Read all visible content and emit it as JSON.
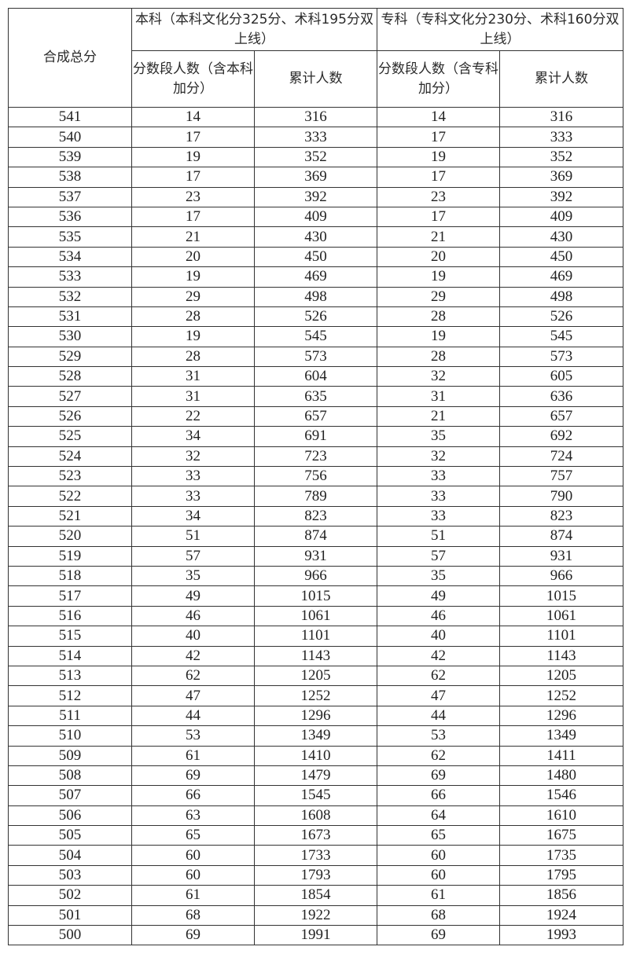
{
  "table": {
    "header": {
      "score_col": "合成总分",
      "benke_group": "本科（本科文化分325分、术科195分双上线）",
      "zhuanke_group": "专科（专科文化分230分、术科160分双上线）",
      "benke_count": "分数段人数（含本科加分）",
      "benke_cum": "累计人数",
      "zhuanke_count": "分数段人数（含专科加分）",
      "zhuanke_cum": "累计人数"
    },
    "rows": [
      [
        "541",
        "14",
        "316",
        "14",
        "316"
      ],
      [
        "540",
        "17",
        "333",
        "17",
        "333"
      ],
      [
        "539",
        "19",
        "352",
        "19",
        "352"
      ],
      [
        "538",
        "17",
        "369",
        "17",
        "369"
      ],
      [
        "537",
        "23",
        "392",
        "23",
        "392"
      ],
      [
        "536",
        "17",
        "409",
        "17",
        "409"
      ],
      [
        "535",
        "21",
        "430",
        "21",
        "430"
      ],
      [
        "534",
        "20",
        "450",
        "20",
        "450"
      ],
      [
        "533",
        "19",
        "469",
        "19",
        "469"
      ],
      [
        "532",
        "29",
        "498",
        "29",
        "498"
      ],
      [
        "531",
        "28",
        "526",
        "28",
        "526"
      ],
      [
        "530",
        "19",
        "545",
        "19",
        "545"
      ],
      [
        "529",
        "28",
        "573",
        "28",
        "573"
      ],
      [
        "528",
        "31",
        "604",
        "32",
        "605"
      ],
      [
        "527",
        "31",
        "635",
        "31",
        "636"
      ],
      [
        "526",
        "22",
        "657",
        "21",
        "657"
      ],
      [
        "525",
        "34",
        "691",
        "35",
        "692"
      ],
      [
        "524",
        "32",
        "723",
        "32",
        "724"
      ],
      [
        "523",
        "33",
        "756",
        "33",
        "757"
      ],
      [
        "522",
        "33",
        "789",
        "33",
        "790"
      ],
      [
        "521",
        "34",
        "823",
        "33",
        "823"
      ],
      [
        "520",
        "51",
        "874",
        "51",
        "874"
      ],
      [
        "519",
        "57",
        "931",
        "57",
        "931"
      ],
      [
        "518",
        "35",
        "966",
        "35",
        "966"
      ],
      [
        "517",
        "49",
        "1015",
        "49",
        "1015"
      ],
      [
        "516",
        "46",
        "1061",
        "46",
        "1061"
      ],
      [
        "515",
        "40",
        "1101",
        "40",
        "1101"
      ],
      [
        "514",
        "42",
        "1143",
        "42",
        "1143"
      ],
      [
        "513",
        "62",
        "1205",
        "62",
        "1205"
      ],
      [
        "512",
        "47",
        "1252",
        "47",
        "1252"
      ],
      [
        "511",
        "44",
        "1296",
        "44",
        "1296"
      ],
      [
        "510",
        "53",
        "1349",
        "53",
        "1349"
      ],
      [
        "509",
        "61",
        "1410",
        "62",
        "1411"
      ],
      [
        "508",
        "69",
        "1479",
        "69",
        "1480"
      ],
      [
        "507",
        "66",
        "1545",
        "66",
        "1546"
      ],
      [
        "506",
        "63",
        "1608",
        "64",
        "1610"
      ],
      [
        "505",
        "65",
        "1673",
        "65",
        "1675"
      ],
      [
        "504",
        "60",
        "1733",
        "60",
        "1735"
      ],
      [
        "503",
        "60",
        "1793",
        "60",
        "1795"
      ],
      [
        "502",
        "61",
        "1854",
        "61",
        "1856"
      ],
      [
        "501",
        "68",
        "1922",
        "68",
        "1924"
      ],
      [
        "500",
        "69",
        "1991",
        "69",
        "1993"
      ]
    ]
  }
}
